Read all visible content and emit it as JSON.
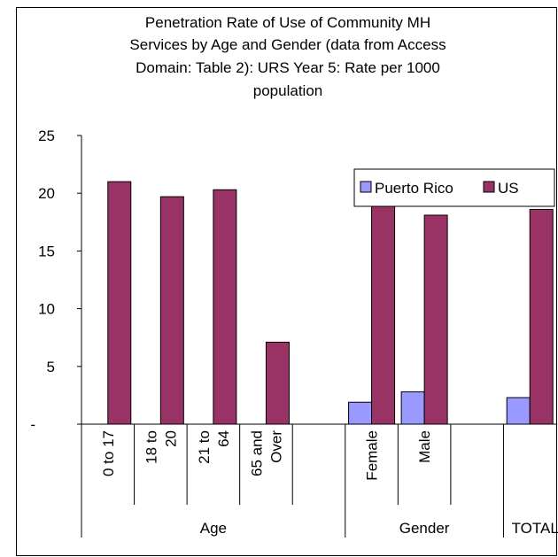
{
  "chart_data": {
    "type": "bar",
    "title_lines": [
      "Penetration Rate of Use of Community MH",
      "Services by Age and Gender (data from Access",
      "Domain: Table 2): URS Year 5: Rate per 1000",
      "population"
    ],
    "categories": [
      {
        "label_lines": [
          "0 to 17"
        ]
      },
      {
        "label_lines": [
          "18 to",
          "20"
        ]
      },
      {
        "label_lines": [
          "21 to",
          "64"
        ]
      },
      {
        "label_lines": [
          "65 and",
          "Over"
        ]
      },
      {
        "label_lines": []
      },
      {
        "label_lines": [
          "Female"
        ]
      },
      {
        "label_lines": [
          "Male"
        ]
      },
      {
        "label_lines": []
      },
      {
        "label_lines": []
      }
    ],
    "groups": [
      {
        "label": "Age"
      },
      {
        "label": "Gender"
      },
      {
        "label": "TOTAL"
      }
    ],
    "series": [
      {
        "name": "Puerto Rico",
        "color": "#9999ff",
        "values": [
          null,
          null,
          null,
          null,
          null,
          1.9,
          2.8,
          null,
          2.3
        ]
      },
      {
        "name": "US",
        "color": "#993366",
        "values": [
          21.0,
          19.7,
          20.3,
          7.1,
          null,
          18.9,
          18.1,
          null,
          18.6
        ]
      }
    ],
    "yticks": [
      "-",
      "5",
      "10",
      "15",
      "20",
      "25"
    ],
    "ylim": [
      0,
      25
    ],
    "grid": false,
    "legend_position": "top-right"
  }
}
